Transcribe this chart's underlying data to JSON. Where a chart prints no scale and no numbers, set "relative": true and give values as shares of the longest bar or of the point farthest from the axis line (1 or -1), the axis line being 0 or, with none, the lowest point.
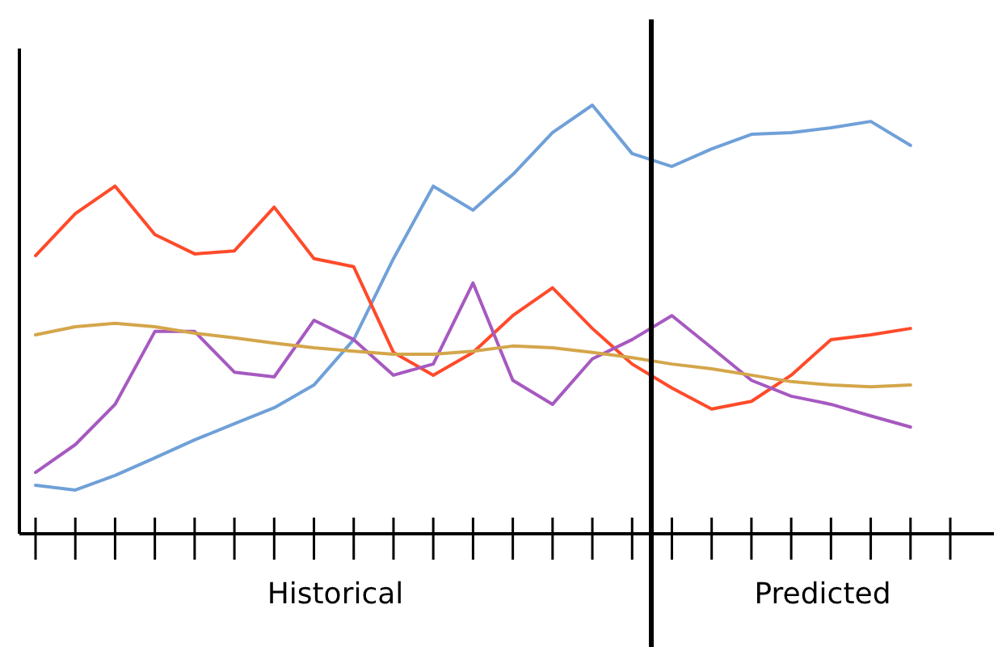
{
  "chart_data": {
    "type": "line",
    "relative": true,
    "categories": [
      null,
      null,
      null,
      null,
      null,
      null,
      null,
      null,
      null,
      null,
      null,
      null,
      null,
      null,
      null,
      null,
      null,
      null,
      null,
      null,
      null,
      null,
      null,
      null
    ],
    "series": [
      {
        "color": "#6fa0d8",
        "values": [
          0.113,
          0.102,
          0.136,
          0.177,
          0.219,
          0.257,
          0.294,
          0.347,
          0.453,
          0.642,
          0.811,
          0.755,
          0.838,
          0.936,
          1.0,
          0.887,
          0.857,
          0.898,
          0.932,
          0.936,
          0.947,
          0.962,
          0.906,
          null
        ]
      },
      {
        "color": "#ff4a2a",
        "values": [
          0.649,
          0.747,
          0.811,
          0.698,
          0.653,
          0.66,
          0.762,
          0.642,
          0.623,
          0.423,
          0.37,
          0.423,
          0.509,
          0.574,
          0.479,
          0.396,
          0.34,
          0.291,
          0.309,
          0.37,
          0.453,
          0.464,
          0.479,
          null
        ]
      },
      {
        "color": "#a659c0",
        "values": [
          0.143,
          0.208,
          0.302,
          0.472,
          0.472,
          0.377,
          0.366,
          0.498,
          0.453,
          0.37,
          0.396,
          0.585,
          0.358,
          0.302,
          0.408,
          0.453,
          0.509,
          0.434,
          0.358,
          0.321,
          0.302,
          0.275,
          0.249,
          null
        ]
      },
      {
        "color": "#d4a64a",
        "values": [
          0.464,
          0.483,
          0.491,
          0.483,
          0.468,
          0.457,
          0.445,
          0.434,
          0.426,
          0.419,
          0.419,
          0.426,
          0.438,
          0.434,
          0.423,
          0.411,
          0.396,
          0.385,
          0.37,
          0.355,
          0.347,
          0.343,
          0.347,
          null
        ]
      }
    ],
    "annotations": [
      "Historical",
      "Predicted"
    ]
  }
}
